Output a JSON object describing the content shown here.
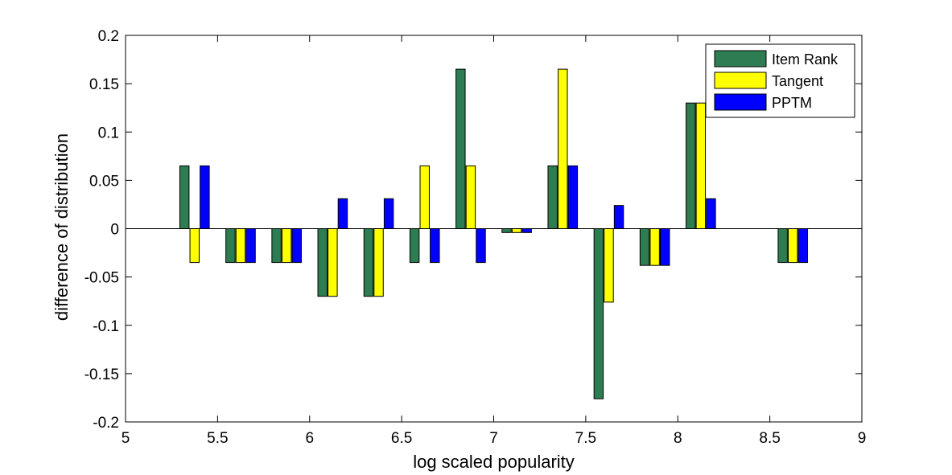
{
  "chart_data": {
    "type": "bar",
    "xlabel": "log scaled popularity",
    "ylabel": "difference of distribution",
    "xlim": [
      5,
      9
    ],
    "ylim": [
      -0.2,
      0.2
    ],
    "xticks": [
      "5",
      "5.5",
      "6",
      "6.5",
      "7",
      "7.5",
      "8",
      "8.5",
      "9"
    ],
    "yticks": [
      "-0.2",
      "-0.15",
      "-0.1",
      "-0.05",
      "0",
      "0.05",
      "0.1",
      "0.15",
      "0.2"
    ],
    "grid": false,
    "legend_position": "top-right",
    "x": [
      5.375,
      5.625,
      5.875,
      6.125,
      6.375,
      6.625,
      6.875,
      7.125,
      7.375,
      7.625,
      7.875,
      8.125,
      8.375,
      8.625
    ],
    "series": [
      {
        "name": "Item Rank",
        "color": "#2e7d52",
        "values": [
          0.065,
          -0.035,
          -0.035,
          -0.07,
          -0.07,
          -0.035,
          0.165,
          -0.004,
          0.065,
          -0.176,
          -0.038,
          0.13,
          0,
          -0.035
        ]
      },
      {
        "name": "Tangent",
        "color": "#ffff00",
        "values": [
          -0.035,
          -0.035,
          -0.035,
          -0.07,
          -0.07,
          0.065,
          0.065,
          -0.004,
          0.165,
          -0.076,
          -0.038,
          0.13,
          0,
          -0.035
        ]
      },
      {
        "name": "PPTM",
        "color": "#0000ff",
        "values": [
          0.065,
          -0.035,
          -0.035,
          0.031,
          0.031,
          -0.035,
          -0.035,
          -0.004,
          0.065,
          0.024,
          -0.038,
          0.031,
          0,
          -0.035
        ]
      }
    ]
  }
}
